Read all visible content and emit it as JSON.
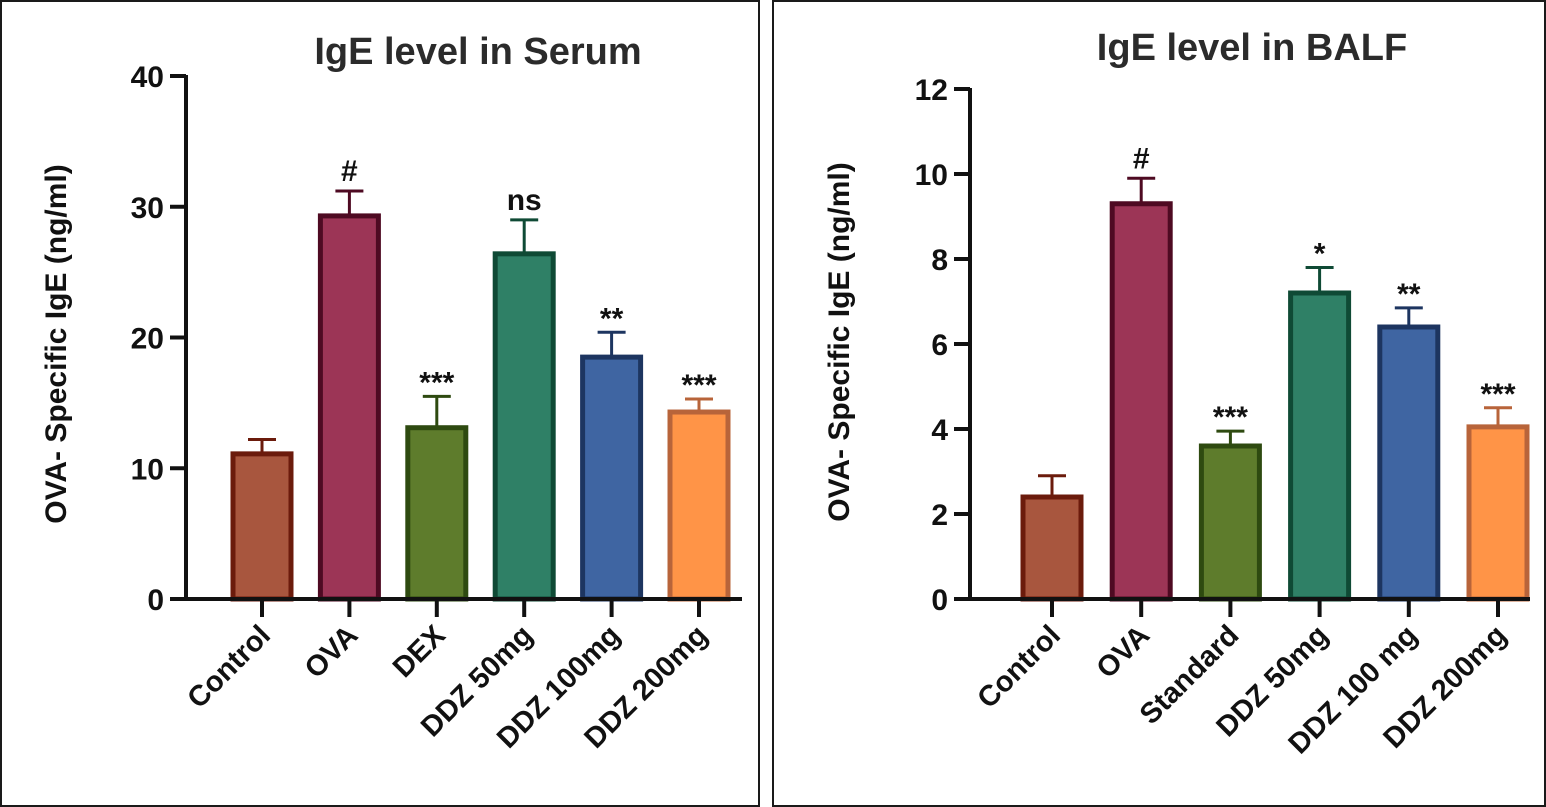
{
  "chart_data": [
    {
      "type": "bar",
      "title": "IgE level in Serum",
      "ylabel": "OVA- Specific IgE (ng/ml)",
      "xlabel": "",
      "ylim": [
        0,
        40
      ],
      "yticks": [
        0,
        10,
        20,
        30,
        40
      ],
      "categories": [
        "Control",
        "OVA",
        "DEX",
        "DDZ 50mg",
        "DDZ 100mg",
        "DDZ 200mg"
      ],
      "values": [
        11.1,
        29.3,
        13.1,
        26.4,
        18.5,
        14.3
      ],
      "errors": [
        1.1,
        1.9,
        2.4,
        2.6,
        1.9,
        1.0
      ],
      "annotations": [
        "",
        "#",
        "***",
        "ns",
        "**",
        "***"
      ],
      "fill_colors": [
        "#A8563E",
        "#9C3556",
        "#5E7C2C",
        "#2F8066",
        "#3F65A2",
        "#FF9447"
      ],
      "edge_colors": [
        "#6B1B0C",
        "#4E0A22",
        "#2E4A10",
        "#0F4A35",
        "#1D3560",
        "#B8643A"
      ],
      "grid": false,
      "legend": "none"
    },
    {
      "type": "bar",
      "title": "IgE level in BALF",
      "ylabel": "OVA- Specific IgE (ng/ml)",
      "xlabel": "",
      "ylim": [
        0,
        12
      ],
      "yticks": [
        0,
        2,
        4,
        6,
        8,
        10,
        12
      ],
      "categories": [
        "Control",
        "OVA",
        "Standard",
        "DDZ 50mg",
        "DDZ 100 mg",
        "DDZ 200mg"
      ],
      "values": [
        2.4,
        9.3,
        3.6,
        7.2,
        6.4,
        4.05
      ],
      "errors": [
        0.5,
        0.6,
        0.35,
        0.6,
        0.45,
        0.45
      ],
      "annotations": [
        "",
        "#",
        "***",
        "*",
        "**",
        "***"
      ],
      "fill_colors": [
        "#A8563E",
        "#9C3556",
        "#5E7C2C",
        "#2F8066",
        "#3F65A2",
        "#FF9447"
      ],
      "edge_colors": [
        "#6B1B0C",
        "#4E0A22",
        "#2E4A10",
        "#0F4A35",
        "#1D3560",
        "#B8643A"
      ],
      "grid": false,
      "legend": "none"
    }
  ]
}
